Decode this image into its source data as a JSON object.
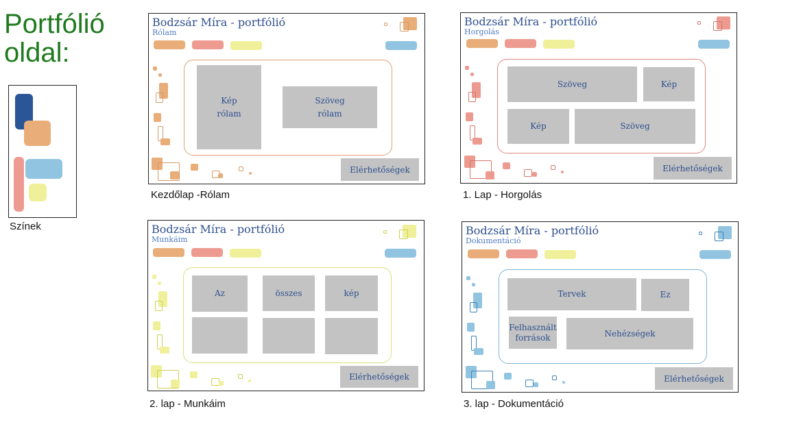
{
  "page": {
    "title_line1": "Portfólió",
    "title_line2": "oldal:",
    "colors_label": "Színek"
  },
  "palette": {
    "dark_blue": "#2a5596",
    "orange": "#e8ad78",
    "salmon": "#ed9b90",
    "light_blue": "#91c4e1",
    "yellow": "#f0f09a",
    "block_gray": "#c3c3c3",
    "header_blue": "#2d4f8e"
  },
  "pages": [
    {
      "caption": "Kezdőlap -Rólam",
      "site_title": "Bodzsár Míra - portfólió",
      "subtitle": "Rólam",
      "accent": "#e8ad78",
      "contact": "Elérhetőségek",
      "blocks": [
        {
          "line1": "Kép",
          "line2": "rólam"
        },
        {
          "line1": "Szöveg",
          "line2": "rólam"
        }
      ]
    },
    {
      "caption": "1. Lap - Horgolás",
      "site_title": "Bodzsár Míra - portfólió",
      "subtitle": "Horgolás",
      "accent": "#ed9b90",
      "contact": "Elérhetőségek",
      "blocks": [
        {
          "line1": "Szöveg",
          "line2": ""
        },
        {
          "line1": "Kép",
          "line2": ""
        },
        {
          "line1": "Kép",
          "line2": ""
        },
        {
          "line1": "Szöveg",
          "line2": ""
        }
      ]
    },
    {
      "caption": "2. lap - Munkáim",
      "site_title": "Bodzsár Míra - portfólió",
      "subtitle": "Munkáim",
      "accent": "#f0f09a",
      "contact": "Elérhetőségek",
      "blocks": [
        {
          "line1": "Az",
          "line2": ""
        },
        {
          "line1": "összes",
          "line2": ""
        },
        {
          "line1": "kép",
          "line2": ""
        },
        {
          "line1": "",
          "line2": ""
        },
        {
          "line1": "",
          "line2": ""
        },
        {
          "line1": "",
          "line2": ""
        }
      ]
    },
    {
      "caption": "3. lap - Dokumentáció",
      "site_title": "Bodzsár Míra - portfólió",
      "subtitle": "Dokumentáció",
      "accent": "#91c4e1",
      "contact": "Elérhetőségek",
      "blocks": [
        {
          "line1": "Tervek",
          "line2": ""
        },
        {
          "line1": "Ez",
          "line2": ""
        },
        {
          "line1": "Felhasznált",
          "line2": "források"
        },
        {
          "line1": "Nehézségek",
          "line2": ""
        }
      ]
    }
  ]
}
